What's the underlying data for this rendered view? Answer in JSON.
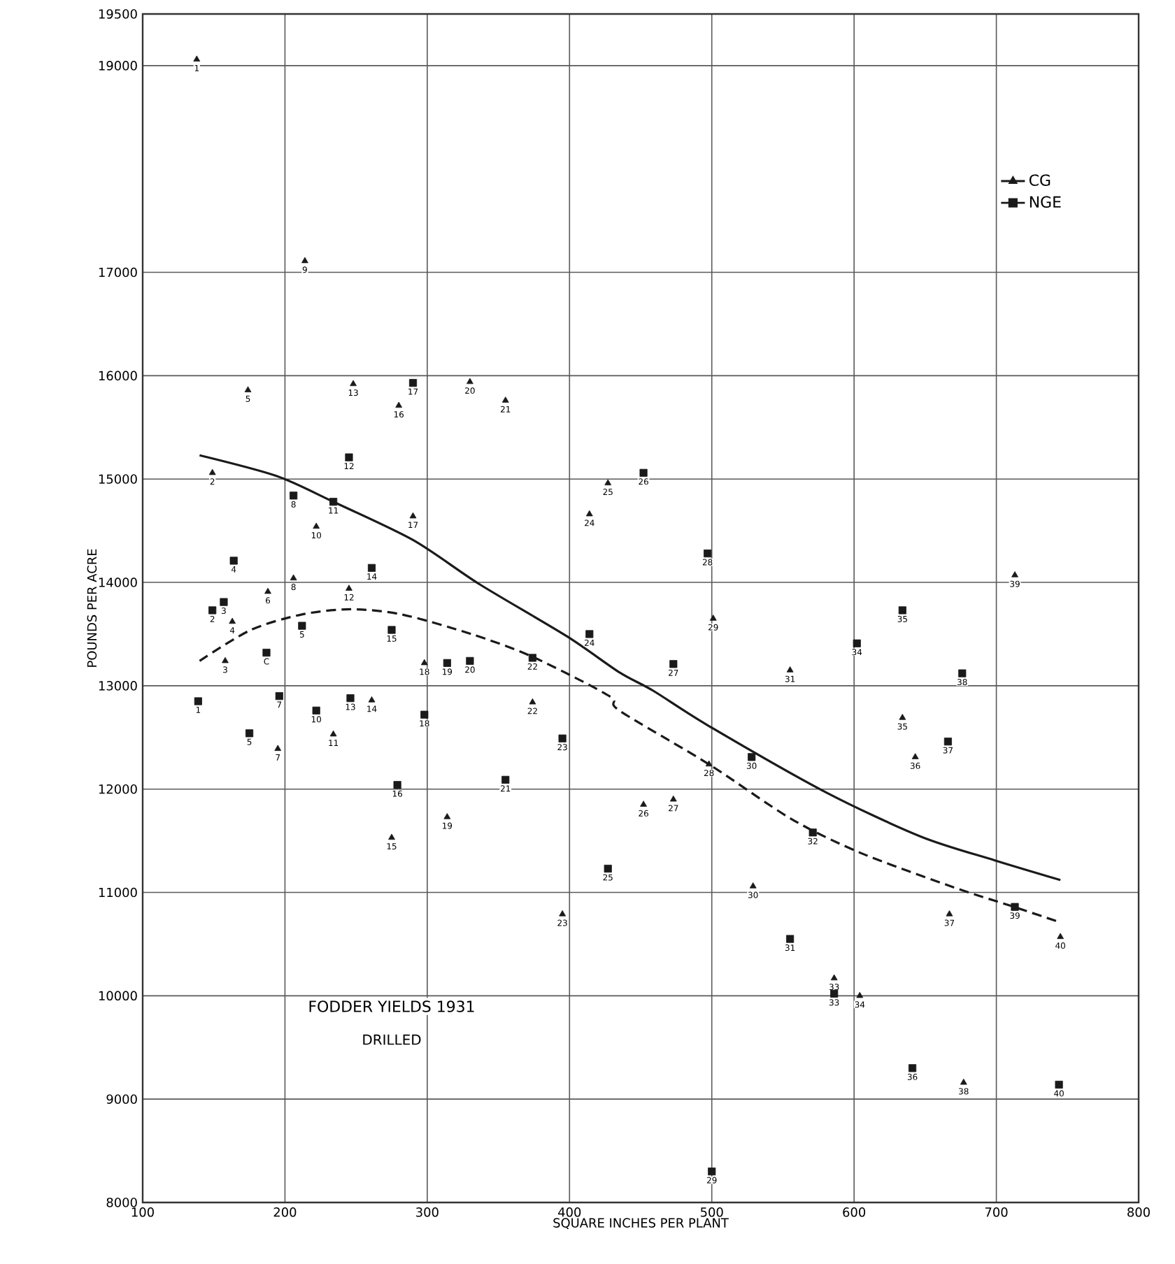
{
  "chart_data": {
    "type": "scatter",
    "title": "FODDER YIELDS 1931",
    "subtitle": "DRILLED",
    "xlabel": "SQUARE INCHES PER PLANT",
    "ylabel": "POUNDS PER ACRE",
    "xlim": [
      100,
      800
    ],
    "ylim": [
      8000,
      19500
    ],
    "xticks": [
      100,
      200,
      300,
      400,
      500,
      600,
      700,
      800
    ],
    "yticks": [
      8000,
      9000,
      10000,
      11000,
      12000,
      13000,
      14000,
      15000,
      16000,
      17000,
      19000,
      19500
    ],
    "grid": true,
    "legend": "top right",
    "series": [
      {
        "name": "CG",
        "marker": "triangle",
        "line_style": "solid",
        "color": "#1a1a1a",
        "x": [
          138,
          149,
          158,
          163,
          174,
          188,
          195,
          206,
          214,
          222,
          234,
          245,
          248,
          261,
          275,
          280,
          290,
          298,
          314,
          330,
          355,
          374,
          395,
          414,
          427,
          452,
          473,
          498,
          501,
          529,
          555,
          586,
          604,
          634,
          643,
          667,
          677,
          713,
          745
        ],
        "values": [
          19060,
          15060,
          13240,
          13620,
          15860,
          13910,
          12390,
          14040,
          17110,
          14540,
          12530,
          13940,
          15920,
          12860,
          11530,
          15710,
          14640,
          13220,
          11730,
          15940,
          15760,
          12840,
          10790,
          14660,
          14960,
          11850,
          11900,
          12240,
          13650,
          11060,
          13150,
          10170,
          10000,
          12690,
          12310,
          10790,
          9160,
          14070,
          10570
        ]
      },
      {
        "name": "NGE",
        "marker": "square",
        "line_style": "dashed",
        "color": "#1a1a1a",
        "x": [
          139,
          149,
          157,
          164,
          175,
          187,
          196,
          206,
          212,
          222,
          234,
          245,
          246,
          261,
          275,
          279,
          290,
          298,
          314,
          330,
          355,
          374,
          395,
          414,
          427,
          452,
          473,
          497,
          500,
          528,
          555,
          571,
          586,
          602,
          634,
          641,
          666,
          676,
          713,
          744
        ],
        "values": [
          12850,
          13730,
          13810,
          14210,
          12540,
          13320,
          12900,
          14840,
          13580,
          12760,
          14780,
          15210,
          12880,
          14140,
          13540,
          12040,
          15930,
          12720,
          13220,
          13240,
          12090,
          13270,
          12490,
          13500,
          11230,
          15060,
          13210,
          14280,
          8300,
          12310,
          10550,
          11580,
          10020,
          13410,
          13730,
          9300,
          12460,
          13120,
          10860,
          9140
        ]
      },
      {
        "type": "line",
        "line_style": "solid",
        "color": "#1a1a1a",
        "x": [
          140,
          194,
          234,
          290,
          337,
          398,
          435,
          459,
          498,
          580,
          647,
          699,
          745
        ],
        "values": [
          15230,
          15030,
          14780,
          14410,
          13980,
          13480,
          13130,
          12950,
          12610,
          11970,
          11540,
          11310,
          11120
        ]
      },
      {
        "type": "line",
        "line_style": "dashed",
        "color": "#1a1a1a",
        "x": [
          140,
          176,
          212,
          246,
          282,
          331,
          374,
          428,
          435,
          498,
          556,
          605,
          672,
          708,
          745
        ],
        "values": [
          13240,
          13540,
          13690,
          13740,
          13690,
          13500,
          13280,
          12900,
          12760,
          12240,
          11710,
          11380,
          11040,
          10880,
          10710
        ]
      }
    ],
    "annotations": [
      {
        "text": "1",
        "x": 138,
        "y": 19060
      },
      {
        "text": "2",
        "x": 149,
        "y": 15060
      },
      {
        "text": "3",
        "x": 158,
        "y": 13240
      },
      {
        "text": "4",
        "x": 163,
        "y": 13620
      },
      {
        "text": "5",
        "x": 174,
        "y": 15860
      },
      {
        "text": "6",
        "x": 188,
        "y": 13910
      },
      {
        "text": "7",
        "x": 195,
        "y": 12390
      },
      {
        "text": "8",
        "x": 206,
        "y": 14040
      },
      {
        "text": "9",
        "x": 214,
        "y": 17110
      },
      {
        "text": "10",
        "x": 222,
        "y": 14540
      },
      {
        "text": "11",
        "x": 234,
        "y": 12530
      },
      {
        "text": "12",
        "x": 245,
        "y": 13940
      },
      {
        "text": "13",
        "x": 248,
        "y": 15920
      },
      {
        "text": "14",
        "x": 261,
        "y": 12860
      },
      {
        "text": "15",
        "x": 275,
        "y": 11530
      },
      {
        "text": "16",
        "x": 280,
        "y": 15710
      },
      {
        "text": "17",
        "x": 290,
        "y": 14640
      },
      {
        "text": "18",
        "x": 298,
        "y": 13220
      },
      {
        "text": "19",
        "x": 314,
        "y": 11730
      },
      {
        "text": "20",
        "x": 330,
        "y": 15940
      },
      {
        "text": "21",
        "x": 355,
        "y": 15760
      },
      {
        "text": "22",
        "x": 374,
        "y": 12840
      },
      {
        "text": "23",
        "x": 395,
        "y": 10790
      },
      {
        "text": "24",
        "x": 414,
        "y": 14660
      },
      {
        "text": "25",
        "x": 427,
        "y": 14960
      },
      {
        "text": "26",
        "x": 452,
        "y": 11850
      },
      {
        "text": "27",
        "x": 473,
        "y": 11900
      },
      {
        "text": "28",
        "x": 498,
        "y": 12240
      },
      {
        "text": "29",
        "x": 501,
        "y": 13650
      },
      {
        "text": "30",
        "x": 529,
        "y": 11060
      },
      {
        "text": "31",
        "x": 555,
        "y": 13150
      },
      {
        "text": "33",
        "x": 586,
        "y": 10170
      },
      {
        "text": "34",
        "x": 604,
        "y": 10000
      },
      {
        "text": "35",
        "x": 634,
        "y": 12690
      },
      {
        "text": "36",
        "x": 643,
        "y": 12310
      },
      {
        "text": "37",
        "x": 667,
        "y": 10790
      },
      {
        "text": "38",
        "x": 677,
        "y": 9160
      },
      {
        "text": "39",
        "x": 713,
        "y": 14070
      },
      {
        "text": "40",
        "x": 745,
        "y": 10570
      },
      {
        "text": "1",
        "x": 139,
        "y": 12850
      },
      {
        "text": "2",
        "x": 149,
        "y": 13730
      },
      {
        "text": "3",
        "x": 157,
        "y": 13810
      },
      {
        "text": "4",
        "x": 164,
        "y": 14210
      },
      {
        "text": "5",
        "x": 175,
        "y": 12540
      },
      {
        "text": "C",
        "x": 187,
        "y": 13320
      },
      {
        "text": "7",
        "x": 196,
        "y": 12900
      },
      {
        "text": "8",
        "x": 206,
        "y": 14840
      },
      {
        "text": "5",
        "x": 212,
        "y": 13580
      },
      {
        "text": "10",
        "x": 222,
        "y": 12760
      },
      {
        "text": "11",
        "x": 234,
        "y": 14780
      },
      {
        "text": "12",
        "x": 245,
        "y": 15210
      },
      {
        "text": "13",
        "x": 246,
        "y": 12880
      },
      {
        "text": "14",
        "x": 261,
        "y": 14140
      },
      {
        "text": "15",
        "x": 275,
        "y": 13540
      },
      {
        "text": "16",
        "x": 279,
        "y": 12040
      },
      {
        "text": "17",
        "x": 290,
        "y": 15930
      },
      {
        "text": "18",
        "x": 298,
        "y": 12720
      },
      {
        "text": "19",
        "x": 314,
        "y": 13220
      },
      {
        "text": "20",
        "x": 330,
        "y": 13240
      },
      {
        "text": "21",
        "x": 355,
        "y": 12090
      },
      {
        "text": "22",
        "x": 374,
        "y": 13270
      },
      {
        "text": "23",
        "x": 395,
        "y": 12490
      },
      {
        "text": "24",
        "x": 414,
        "y": 13500
      },
      {
        "text": "25",
        "x": 427,
        "y": 11230
      },
      {
        "text": "26",
        "x": 452,
        "y": 15060
      },
      {
        "text": "27",
        "x": 473,
        "y": 13210
      },
      {
        "text": "28",
        "x": 497,
        "y": 14280
      },
      {
        "text": "29",
        "x": 500,
        "y": 8300
      },
      {
        "text": "30",
        "x": 528,
        "y": 12310
      },
      {
        "text": "31",
        "x": 555,
        "y": 10550
      },
      {
        "text": "32",
        "x": 571,
        "y": 11580
      },
      {
        "text": "33",
        "x": 586,
        "y": 10020
      },
      {
        "text": "34",
        "x": 602,
        "y": 13410
      },
      {
        "text": "35",
        "x": 634,
        "y": 13730
      },
      {
        "text": "36",
        "x": 641,
        "y": 9300
      },
      {
        "text": "37",
        "x": 666,
        "y": 12460
      },
      {
        "text": "38",
        "x": 676,
        "y": 13120
      },
      {
        "text": "39",
        "x": 713,
        "y": 10860
      },
      {
        "text": "40",
        "x": 744,
        "y": 9140
      }
    ]
  }
}
